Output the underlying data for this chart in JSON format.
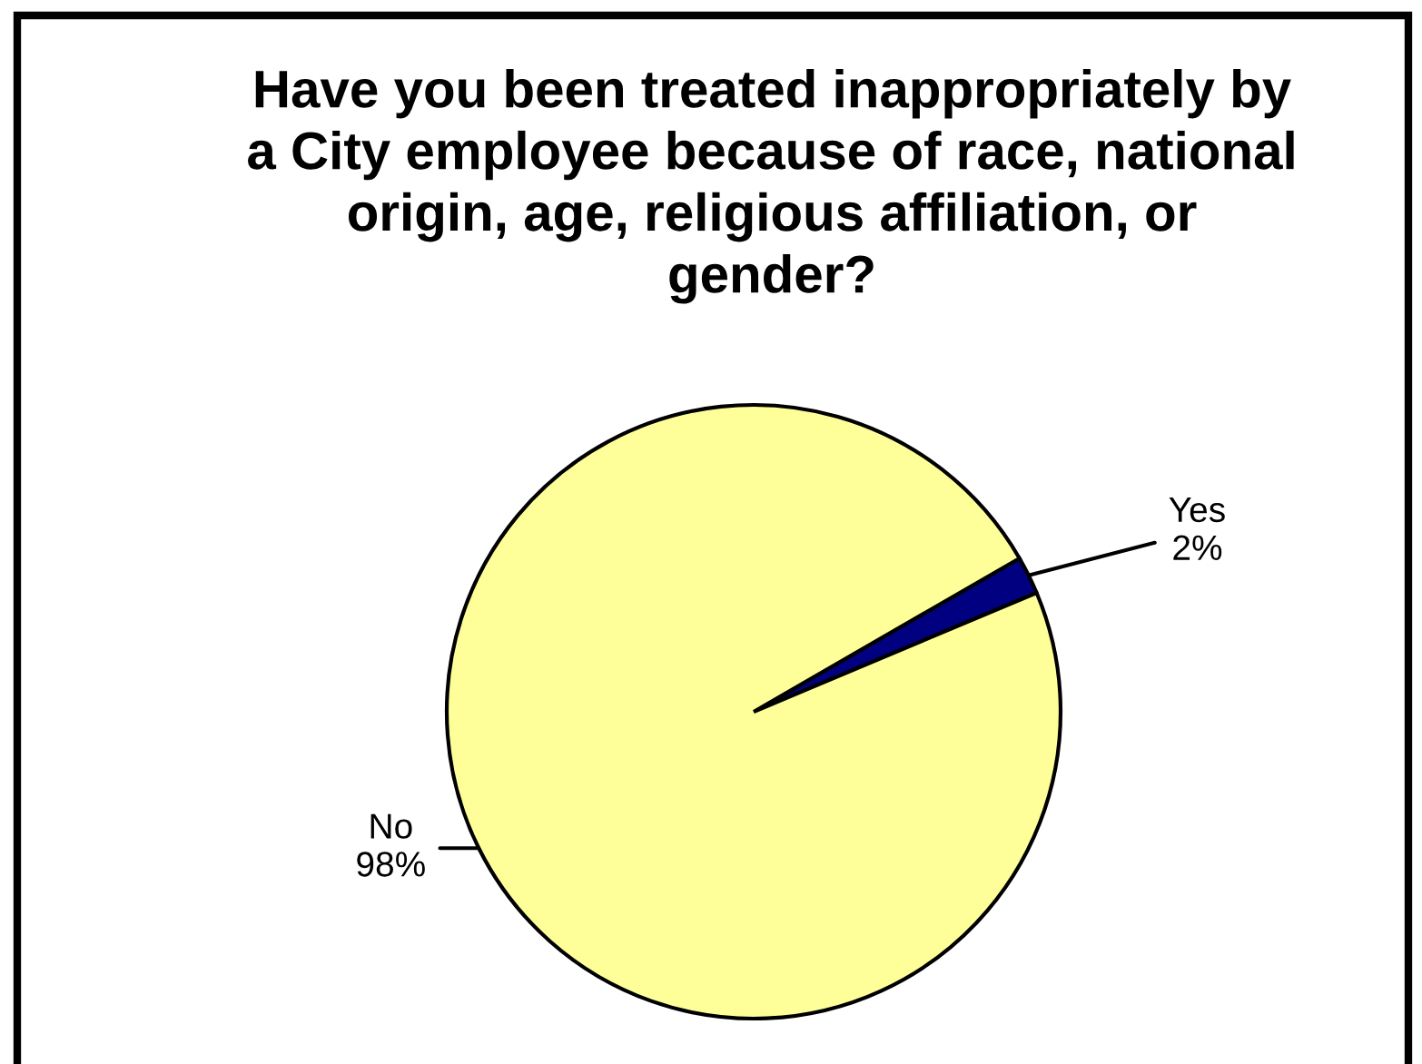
{
  "chart_data": {
    "type": "pie",
    "title": "Have you been treated inappropriately by\na City employee because of race, national\norigin, age, religious affiliation, or\ngender?",
    "categories": [
      "Yes",
      "No"
    ],
    "values": [
      2,
      98
    ],
    "colors": [
      "#000080",
      "#ffff99"
    ],
    "value_labels": [
      "2%",
      "98%"
    ]
  }
}
